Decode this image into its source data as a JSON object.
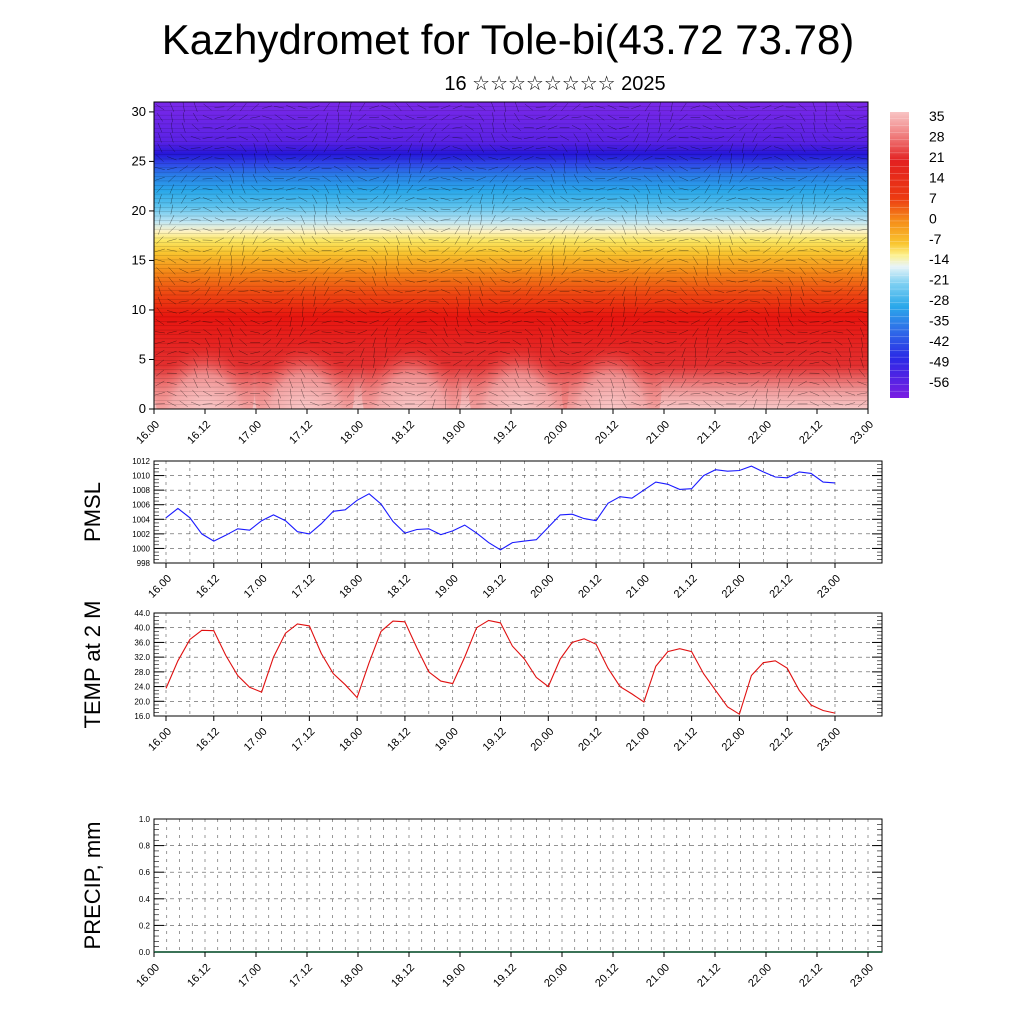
{
  "header": {
    "title": "Kazhydromet for Tole-bi(43.72 73.78)",
    "subtitle": "16 ☆☆☆☆☆☆☆☆ 2025"
  },
  "chart_data": [
    {
      "type": "heatmap",
      "name": "cross-section",
      "x_ticks": [
        "16.00",
        "16.12",
        "17.00",
        "17.12",
        "18.00",
        "18.12",
        "19.00",
        "19.12",
        "20.00",
        "20.12",
        "21.00",
        "21.12",
        "22.00",
        "22.12",
        "23.00"
      ],
      "y_ticks": [
        "0",
        "5",
        "10",
        "15",
        "20",
        "25",
        "30"
      ],
      "ylim": [
        0,
        31
      ],
      "colorbar_labels": [
        "35",
        "28",
        "21",
        "14",
        "7",
        "0",
        "-7",
        "-14",
        "-21",
        "-28",
        "-35",
        "-42",
        "-49",
        "-56"
      ],
      "colors": {
        "warm_core": "#f7b9b9",
        "warm": "#e8150f",
        "orange": "#f58c18",
        "yellow": "#fbe24a",
        "pale": "#bfe6f4",
        "cyan": "#2aa8ea",
        "blue": "#2f36e8",
        "violet": "#7a1de2"
      }
    },
    {
      "type": "line",
      "ylabel": "PMSL",
      "ylim": [
        998,
        1012
      ],
      "y_ticks": [
        "998",
        "1000",
        "1002",
        "1004",
        "1006",
        "1008",
        "1010",
        "1012"
      ],
      "x_ticks": [
        "16.00",
        "16.12",
        "17.00",
        "17.12",
        "18.00",
        "18.12",
        "19.00",
        "19.12",
        "20.00",
        "20.12",
        "21.00",
        "21.12",
        "22.00",
        "22.12",
        "23.00"
      ],
      "color": "#1a1aff",
      "values": [
        1004.2,
        1005.5,
        1004.2,
        1002.0,
        1001.0,
        1001.8,
        1002.7,
        1002.5,
        1003.8,
        1004.6,
        1003.8,
        1002.3,
        1002.0,
        1003.4,
        1005.1,
        1005.3,
        1006.6,
        1007.5,
        1006.1,
        1003.7,
        1002.1,
        1002.6,
        1002.7,
        1001.9,
        1002.4,
        1003.2,
        1002.1,
        1000.8,
        999.8,
        1000.8,
        1001.0,
        1001.2,
        1002.9,
        1004.6,
        1004.7,
        1004.1,
        1003.8,
        1006.2,
        1007.1,
        1006.9,
        1008.0,
        1009.1,
        1008.8,
        1008.1,
        1008.2,
        1010.0,
        1010.8,
        1010.6,
        1010.7,
        1011.3,
        1010.5,
        1009.8,
        1009.7,
        1010.5,
        1010.3,
        1009.1,
        1009.0
      ]
    },
    {
      "type": "line",
      "ylabel": "TEMP at 2 M",
      "ylim": [
        16,
        44
      ],
      "y_ticks": [
        "16.0",
        "20.0",
        "24.0",
        "28.0",
        "32.0",
        "36.0",
        "40.0",
        "44.0"
      ],
      "x_ticks": [
        "16.00",
        "16.12",
        "17.00",
        "17.12",
        "18.00",
        "18.12",
        "19.00",
        "19.12",
        "20.00",
        "20.12",
        "21.00",
        "21.12",
        "22.00",
        "22.12",
        "23.00"
      ],
      "color": "#e01010",
      "values": [
        23.5,
        31.0,
        36.8,
        39.3,
        39.2,
        32.5,
        27.0,
        23.8,
        22.5,
        32.0,
        38.5,
        41.0,
        40.5,
        33.0,
        27.5,
        24.5,
        21.0,
        30.5,
        39.0,
        41.8,
        41.6,
        34.5,
        28.0,
        25.5,
        24.8,
        32.0,
        40.0,
        42.0,
        41.3,
        35.0,
        31.5,
        26.5,
        24.0,
        31.5,
        36.0,
        37.0,
        35.5,
        29.0,
        24.0,
        22.0,
        19.8,
        29.5,
        33.5,
        34.3,
        33.5,
        27.5,
        23.0,
        18.5,
        16.5,
        27.0,
        30.5,
        31.0,
        29.0,
        23.0,
        19.0,
        17.5,
        16.8
      ]
    },
    {
      "type": "bar",
      "ylabel": "PRECIP, mm",
      "ylim": [
        0,
        1
      ],
      "y_ticks": [
        "0.0",
        "0.2",
        "0.4",
        "0.6",
        "0.8",
        "1.0"
      ],
      "x_ticks": [
        "16.00",
        "16.12",
        "17.00",
        "17.12",
        "18.00",
        "18.12",
        "19.00",
        "19.12",
        "20.00",
        "20.12",
        "21.00",
        "21.12",
        "22.00",
        "22.12",
        "23.00"
      ],
      "values": [
        0,
        0,
        0,
        0,
        0,
        0,
        0,
        0,
        0,
        0,
        0,
        0,
        0,
        0,
        0,
        0,
        0,
        0,
        0,
        0,
        0,
        0,
        0,
        0,
        0,
        0,
        0,
        0,
        0,
        0,
        0,
        0,
        0,
        0,
        0,
        0,
        0,
        0,
        0,
        0,
        0,
        0,
        0,
        0,
        0,
        0,
        0,
        0,
        0,
        0,
        0,
        0,
        0,
        0,
        0,
        0,
        0,
        0
      ]
    }
  ]
}
